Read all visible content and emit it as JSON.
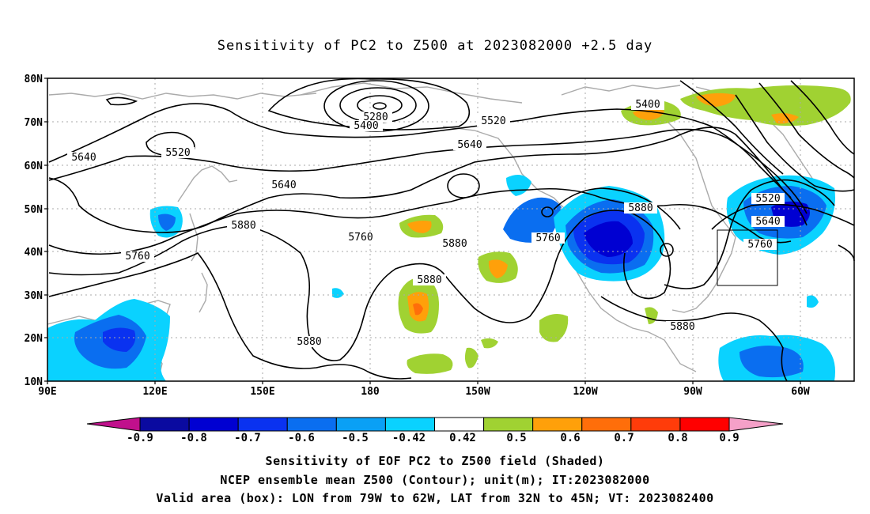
{
  "title": "Sensitivity of PC2 to Z500 at 2023082000 +2.5 day",
  "lat_labels": [
    "80N",
    "70N",
    "60N",
    "50N",
    "40N",
    "30N",
    "20N",
    "10N"
  ],
  "lon_labels": [
    "90E",
    "120E",
    "150E",
    "180",
    "150W",
    "120W",
    "90W",
    "60W"
  ],
  "contour_labels": [
    "5280",
    "5400",
    "5520",
    "5520",
    "5640",
    "5640",
    "5640",
    "5760",
    "5760",
    "5880",
    "5880",
    "5880",
    "5880",
    "5760",
    "5400",
    "5520",
    "5640",
    "5760",
    "5880",
    "5880"
  ],
  "colorbar": {
    "labels": [
      "-0.9",
      "-0.8",
      "-0.7",
      "-0.6",
      "-0.5",
      "-0.42",
      "0.42",
      "0.5",
      "0.6",
      "0.7",
      "0.8",
      "0.9"
    ],
    "colors": [
      "#c0108c",
      "#0a0aa0",
      "#0000d2",
      "#0a32f0",
      "#0a6ef0",
      "#0aa0f5",
      "#0ad2ff",
      "#ffffff",
      "#a0d232",
      "#ffa00a",
      "#ff6e0a",
      "#ff3c0a",
      "#ff0000",
      "#f5a0c8"
    ]
  },
  "valid_box": {
    "lon_from": "79W",
    "lon_to": "62W",
    "lat_from": "32N",
    "lat_to": "45N"
  },
  "captions": {
    "line1": "Sensitivity of EOF PC2 to Z500 field (Shaded)",
    "line2": "NCEP ensemble mean Z500 (Contour); unit(m); IT:2023082000",
    "line3": "Valid area (box): LON from 79W to 62W, LAT from 32N to 45N; VT: 2023082400"
  }
}
